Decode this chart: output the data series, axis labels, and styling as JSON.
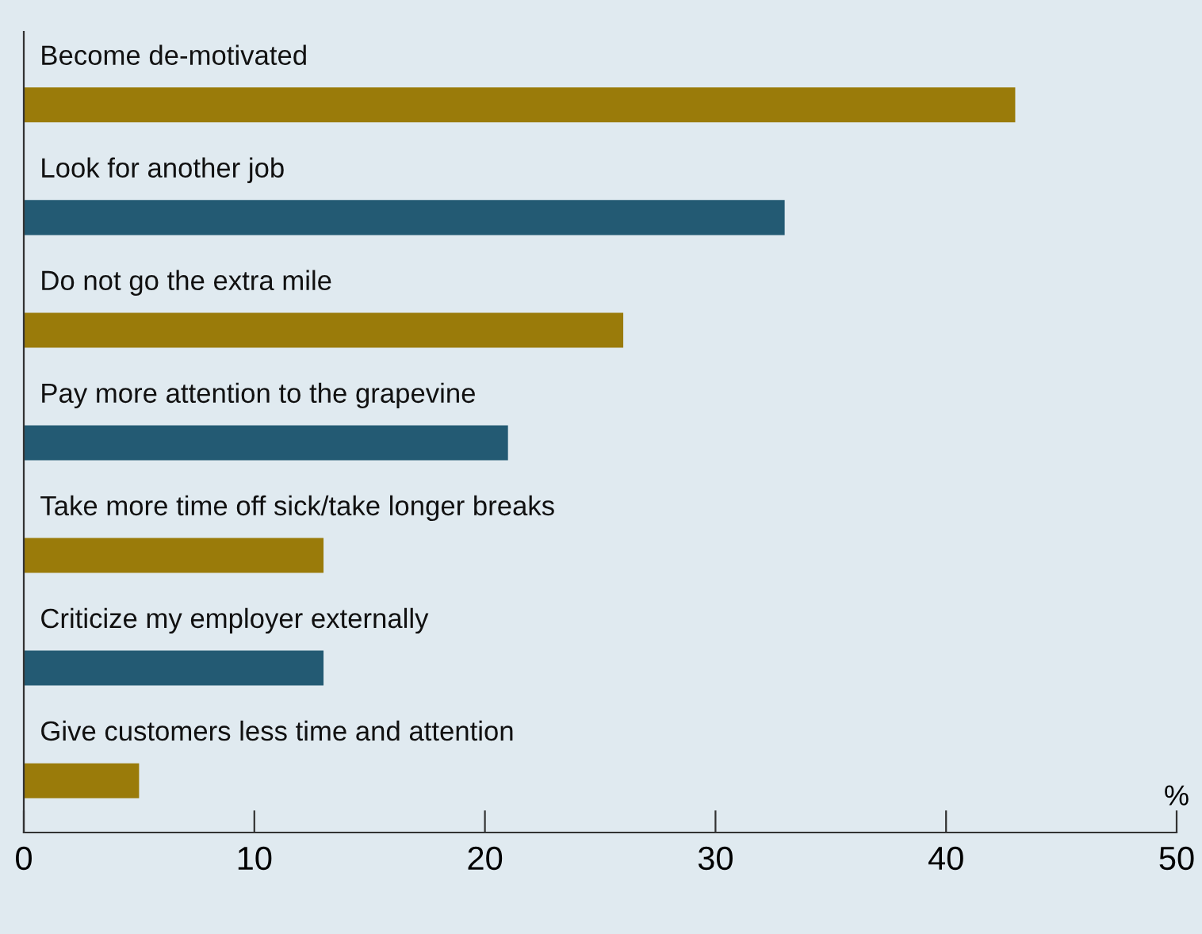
{
  "chart_data": {
    "type": "bar",
    "orientation": "horizontal",
    "xlabel": "%",
    "categories": [
      "Become de-motivated",
      "Look for another job",
      "Do not go the extra mile",
      "Pay more attention to the grapevine",
      "Take more time off sick/take longer breaks",
      "Criticize my employer externally",
      "Give customers less time and attention"
    ],
    "values": [
      43,
      33,
      26,
      21,
      13,
      13,
      5
    ],
    "colors": [
      "#9a7b0a",
      "#235a73",
      "#9a7b0a",
      "#235a73",
      "#9a7b0a",
      "#235a73",
      "#9a7b0a"
    ],
    "xlim": [
      0,
      50
    ],
    "xticks": [
      0,
      10,
      20,
      30,
      40,
      50
    ],
    "grid": false,
    "legend": false
  }
}
